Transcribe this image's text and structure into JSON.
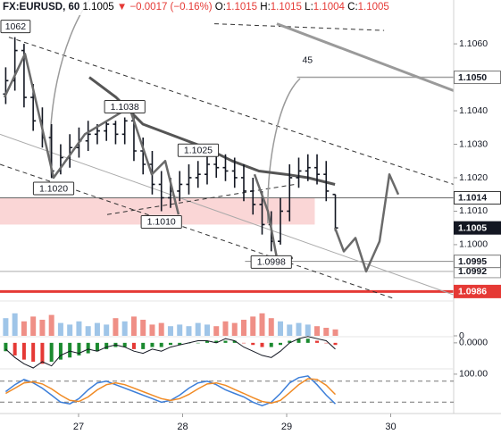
{
  "header": {
    "symbol": "FX:EURUSD, 60",
    "price": "1.1005",
    "arrow": "▼",
    "change": "−0.0017 (−0.16%)",
    "o_label": "O:",
    "open": "1.1015",
    "h_label": "H:",
    "high": "1.1015",
    "l_label": "L:",
    "low": "1.1004",
    "c_label": "C:",
    "close": "1.1005"
  },
  "chart_data": [
    {
      "type": "ohlc",
      "color": "#131722",
      "x": [
        26.3,
        26.388,
        26.476,
        26.564,
        26.652,
        26.74,
        26.828,
        26.916,
        27.004,
        27.092,
        27.18,
        27.268,
        27.356,
        27.444,
        27.532,
        27.62,
        27.708,
        27.796,
        27.884,
        27.972,
        28.06,
        28.148,
        28.236,
        28.324,
        28.412,
        28.5,
        28.588,
        28.676,
        28.764,
        28.852,
        28.94,
        29.028,
        29.116,
        29.204,
        29.292,
        29.38,
        29.468
      ],
      "open": [
        1.1045,
        1.1049,
        1.1058,
        1.1044,
        1.1037,
        1.1032,
        1.1022,
        1.1026,
        1.1029,
        1.1031,
        1.1033,
        1.1034,
        1.1036,
        1.1033,
        1.1037,
        1.1028,
        1.1024,
        1.1018,
        1.1014,
        1.1016,
        1.1018,
        1.102,
        1.1021,
        1.1024,
        1.1023,
        1.1022,
        1.102,
        1.1016,
        1.1012,
        1.1006,
        1.1001,
        1.101,
        1.102,
        1.1022,
        1.1023,
        1.1021,
        1.1015
      ],
      "high": [
        1.1053,
        1.1062,
        1.106,
        1.1048,
        1.1041,
        1.1036,
        1.103,
        1.1033,
        1.1035,
        1.1037,
        1.1036,
        1.1037,
        1.1037,
        1.1038,
        1.1038,
        1.1032,
        1.1028,
        1.1022,
        1.102,
        1.1022,
        1.1024,
        1.1025,
        1.1028,
        1.1028,
        1.1027,
        1.1026,
        1.1024,
        1.102,
        1.1016,
        1.101,
        1.1014,
        1.1024,
        1.1026,
        1.1027,
        1.1027,
        1.1025,
        1.1015
      ],
      "low": [
        1.1042,
        1.1046,
        1.1041,
        1.1034,
        1.1029,
        1.102,
        1.1021,
        1.1023,
        1.1026,
        1.1028,
        1.103,
        1.1031,
        1.103,
        1.103,
        1.1025,
        1.1021,
        1.1015,
        1.101,
        1.1011,
        1.1013,
        1.1015,
        1.1017,
        1.1018,
        1.102,
        1.1019,
        1.1017,
        1.1013,
        1.1009,
        1.1003,
        1.0998,
        1.1,
        1.1007,
        1.1017,
        1.1019,
        1.1018,
        1.1013,
        1.1004
      ],
      "close": [
        1.1049,
        1.1058,
        1.1044,
        1.1037,
        1.1032,
        1.1022,
        1.1026,
        1.1029,
        1.1031,
        1.1033,
        1.1034,
        1.1036,
        1.1033,
        1.1037,
        1.1028,
        1.1024,
        1.1018,
        1.1014,
        1.1016,
        1.1018,
        1.102,
        1.1021,
        1.1024,
        1.1023,
        1.1022,
        1.102,
        1.1016,
        1.1012,
        1.1006,
        1.1001,
        1.101,
        1.102,
        1.1022,
        1.1023,
        1.1021,
        1.1016,
        1.1005
      ],
      "xlim": [
        26.245,
        30.605
      ],
      "ylim": [
        1.09837,
        1.10731
      ],
      "xticks": [
        27,
        28,
        29,
        30
      ],
      "yticks": [
        {
          "value": 1.106,
          "label": "1.1060"
        },
        {
          "value": 1.104,
          "label": "1.1040"
        },
        {
          "value": 1.103,
          "label": "1.1030"
        },
        {
          "value": 1.102,
          "label": "1.1020"
        },
        {
          "value": 1.101,
          "label": "1.1010"
        },
        {
          "value": 1.1,
          "label": "1.1000"
        }
      ],
      "zone": {
        "x": [
          26.245,
          29.27
        ],
        "y": [
          1.1006,
          1.1014
        ],
        "color": "rgba(240,128,128,0.32)"
      },
      "levels": [
        {
          "value": 1.105,
          "from": 29.1,
          "color": "#a0a0a0",
          "width": 1.5
        },
        {
          "value": 1.1014,
          "from": 26.245,
          "color": "#666666",
          "width": 1
        },
        {
          "value": 1.0995,
          "from": 28.6,
          "color": "#888888",
          "width": 1
        },
        {
          "value": 1.0992,
          "from": 26.245,
          "color": "#aaaaaa",
          "width": 1
        },
        {
          "value": 1.0986,
          "from": 26.245,
          "color": "#e53935",
          "width": 3
        }
      ],
      "lines": [
        {
          "x": [
            26.245,
            30.605
          ],
          "y": [
            1.1033,
            1.0985
          ],
          "color": "#aaaaaa",
          "width": 1,
          "dash": false
        },
        {
          "x": [
            26.33,
            30.605
          ],
          "y": [
            1.1062,
            1.1018
          ],
          "color": "#333333",
          "width": 1,
          "dash": true
        },
        {
          "x": [
            26.245,
            30.021
          ],
          "y": [
            1.1024,
            1.0984
          ],
          "color": "#333333",
          "width": 1,
          "dash": true
        },
        {
          "x": [
            27.275,
            29.077
          ],
          "y": [
            1.1009,
            1.1018
          ],
          "color": "#333333",
          "width": 1,
          "dash": true
        },
        {
          "x": [
            28.305,
            29.936
          ],
          "y": [
            1.1066,
            1.1064
          ],
          "color": "#333333",
          "width": 1,
          "dash": true
        },
        {
          "x": [
            28.906,
            30.605
          ],
          "y": [
            1.1066,
            1.1046
          ],
          "color": "#9a9a9a",
          "width": 3,
          "dash": false
        }
      ],
      "ma": {
        "x": [
          27.103,
          27.361,
          27.618,
          27.961,
          28.219,
          28.476,
          28.734,
          28.991,
          29.206,
          29.464
        ],
        "values": [
          1.105,
          1.1044,
          1.1036,
          1.1032,
          1.1029,
          1.1025,
          1.1022,
          1.1021,
          1.102,
          1.1018
        ],
        "color": "#555555",
        "width": 3
      },
      "projection": {
        "x": [
          26.288,
          26.485,
          26.76,
          27.06,
          27.489,
          27.704,
          27.833,
          27.961,
          null,
          28.691,
          28.82,
          28.906,
          29.06,
          null,
          29.464,
          29.549,
          29.661,
          29.764,
          29.893,
          29.987,
          30.073
        ],
        "values": [
          1.1044,
          1.1057,
          1.102,
          1.1033,
          1.1041,
          1.1021,
          1.1025,
          1.1009,
          null,
          1.1021,
          1.101,
          1.0996,
          1.0996,
          null,
          1.1005,
          1.0998,
          1.1002,
          1.0992,
          1.1001,
          1.1021,
          1.1015
        ],
        "color": "#6a6a6a",
        "width": 2.5
      },
      "annotations": [
        {
          "label": "1062",
          "x": 26.388,
          "y": 1.1062,
          "pos": "above",
          "box": true
        },
        {
          "label": "1.1020",
          "x": 26.76,
          "y": 1.102,
          "pos": "below",
          "box": true
        },
        {
          "label": "1.1038",
          "x": 27.444,
          "y": 1.1038,
          "pos": "above",
          "box": true
        },
        {
          "label": "1.1025",
          "x": 28.15,
          "y": 1.1025,
          "pos": "above",
          "box": true
        },
        {
          "label": "1.1010",
          "x": 27.796,
          "y": 1.101,
          "pos": "below",
          "box": true
        },
        {
          "label": "1.0998",
          "x": 28.852,
          "y": 1.0998,
          "pos": "below",
          "box": true
        },
        {
          "label": "45",
          "x": 29.2,
          "y": 1.1052,
          "pos": "above",
          "box": false
        }
      ],
      "price_labels": [
        {
          "value": 1.105,
          "label": "1.1050",
          "bg": "#ffffff",
          "fg": "#131722",
          "border": "#777777"
        },
        {
          "value": 1.1014,
          "label": "1.1014",
          "bg": "#ffffff",
          "fg": "#131722",
          "border": "#333333"
        },
        {
          "value": 1.1005,
          "label": "1.1005",
          "bg": "#131722",
          "fg": "#ffffff",
          "border": "#131722"
        },
        {
          "value": 1.0992,
          "label": "1.0992",
          "bg": "#ffffff",
          "fg": "#131722",
          "border": "#999999"
        },
        {
          "value": 1.0995,
          "label": "1.0995",
          "bg": "#ffffff",
          "fg": "#131722",
          "border": "#777777"
        },
        {
          "value": 1.0986,
          "label": "1.0986",
          "bg": "#e53935",
          "fg": "#ffffff",
          "border": "#e53935"
        }
      ]
    },
    {
      "type": "bar",
      "values": [
        55,
        70,
        45,
        60,
        50,
        65,
        40,
        35,
        45,
        30,
        40,
        35,
        55,
        45,
        60,
        50,
        35,
        40,
        30,
        35,
        30,
        40,
        35,
        30,
        45,
        40,
        50,
        60,
        70,
        55,
        45,
        35,
        40,
        35,
        30,
        25,
        20
      ],
      "up_color": "#9fc5e8",
      "down_color": "#ef8f86",
      "ylim": [
        0,
        100
      ],
      "yticks": [
        0
      ]
    },
    {
      "type": "macd",
      "histogram": [
        -0.0004,
        -0.0006,
        -0.0008,
        -0.0009,
        -0.001,
        -0.0009,
        -0.0008,
        -0.0007,
        -0.0006,
        -0.0005,
        -0.0004,
        -0.0003,
        -0.0002,
        -0.0002,
        -0.0003,
        -0.0003,
        -0.0002,
        -0.0002,
        -0.0001,
        -0.0001,
        0,
        0,
        0.0001,
        0.0001,
        0.0001,
        0.0001,
        0,
        -0.0001,
        -0.0002,
        -0.0002,
        -0.0001,
        0.0001,
        0.0002,
        0.0002,
        0.0001,
        0,
        -0.0001
      ],
      "macd": [
        -0.0003,
        -0.0007,
        -0.001,
        -0.0012,
        -0.0009,
        -0.0011,
        -0.0006,
        -0.0004,
        -0.0005,
        -0.0003,
        -0.0004,
        -0.0002,
        -0.0001,
        -0.0002,
        -0.0004,
        -0.0005,
        -0.0003,
        -0.0004,
        -0.0002,
        -0.0001,
        0,
        0.0001,
        0.0001,
        0,
        0.0002,
        0.0001,
        -0.0002,
        -0.0004,
        -0.0006,
        -0.0007,
        -0.0004,
        0,
        0.0002,
        0.0003,
        0.0002,
        0.0001,
        -0.0003
      ],
      "up_color": "#1b8a2f",
      "down_color": "#e53935",
      "line_color": "#131722",
      "ylim": [
        -0.0012,
        0.00025
      ],
      "yticks": [
        {
          "value": 0,
          "label": "0.0000"
        }
      ]
    },
    {
      "type": "line",
      "series": [
        {
          "color": "#3d7fd9",
          "values": [
            50,
            70,
            85,
            75,
            60,
            40,
            20,
            15,
            30,
            55,
            75,
            80,
            70,
            60,
            50,
            40,
            30,
            20,
            25,
            40,
            60,
            75,
            80,
            70,
            55,
            45,
            35,
            20,
            10,
            20,
            45,
            75,
            90,
            95,
            70,
            40,
            15
          ]
        },
        {
          "color": "#f08a24",
          "values": [
            45,
            60,
            75,
            78,
            72,
            58,
            40,
            25,
            22,
            35,
            55,
            70,
            75,
            70,
            60,
            50,
            40,
            30,
            25,
            30,
            42,
            58,
            72,
            75,
            68,
            56,
            45,
            33,
            22,
            17,
            25,
            47,
            70,
            87,
            85,
            68,
            42
          ]
        }
      ],
      "levels": [
        80,
        20
      ],
      "ylim": [
        -10,
        110
      ],
      "yticks": [
        {
          "value": 100,
          "label": "100.00"
        }
      ]
    }
  ]
}
